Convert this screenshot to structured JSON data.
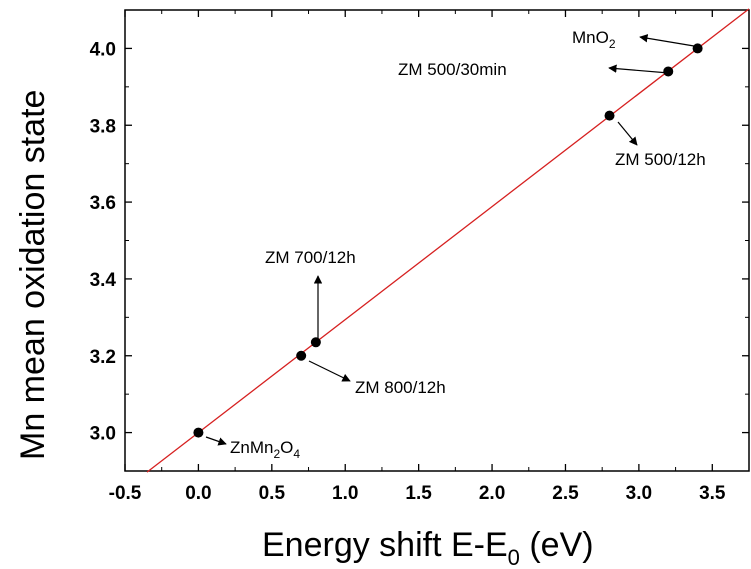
{
  "chart_data": {
    "type": "scatter",
    "title": "",
    "xlabel": {
      "main": "Energy shift E-E",
      "sub": "0",
      "tail": " (eV)"
    },
    "ylabel": "Mn mean oxidation state",
    "xlim": [
      -0.5,
      3.75
    ],
    "ylim": [
      2.9,
      4.1
    ],
    "xticks": [
      -0.5,
      0.0,
      0.5,
      1.0,
      1.5,
      2.0,
      2.5,
      3.0,
      3.5
    ],
    "xtick_labels": [
      "-0.5",
      "0.0",
      "0.5",
      "1.0",
      "1.5",
      "2.0",
      "2.5",
      "3.0",
      "3.5"
    ],
    "yticks": [
      3.0,
      3.2,
      3.4,
      3.6,
      3.8,
      4.0
    ],
    "ytick_labels": [
      "3.0",
      "3.2",
      "3.4",
      "3.6",
      "3.8",
      "4.0"
    ],
    "grid": false,
    "fit_line": {
      "color": "#d62020",
      "slope": 0.2941,
      "intercept": 3.0,
      "x_range": [
        -0.35,
        3.75
      ]
    },
    "points": [
      {
        "x": 0.0,
        "y": 3.0,
        "label": {
          "main": "ZnMn",
          "sub1": "2",
          "mid": "O",
          "sub2": "4"
        }
      },
      {
        "x": 0.7,
        "y": 3.2,
        "label": {
          "main": "ZM 800/12h"
        }
      },
      {
        "x": 0.8,
        "y": 3.235,
        "label": {
          "main": "ZM 700/12h"
        }
      },
      {
        "x": 2.8,
        "y": 3.825,
        "label": {
          "main": "ZM 500/12h"
        }
      },
      {
        "x": 3.2,
        "y": 3.94,
        "label": {
          "main": "ZM 500/30min"
        }
      },
      {
        "x": 3.4,
        "y": 4.0,
        "label": {
          "main": "MnO",
          "sub1": "2"
        }
      }
    ],
    "point_color": "#000000"
  }
}
